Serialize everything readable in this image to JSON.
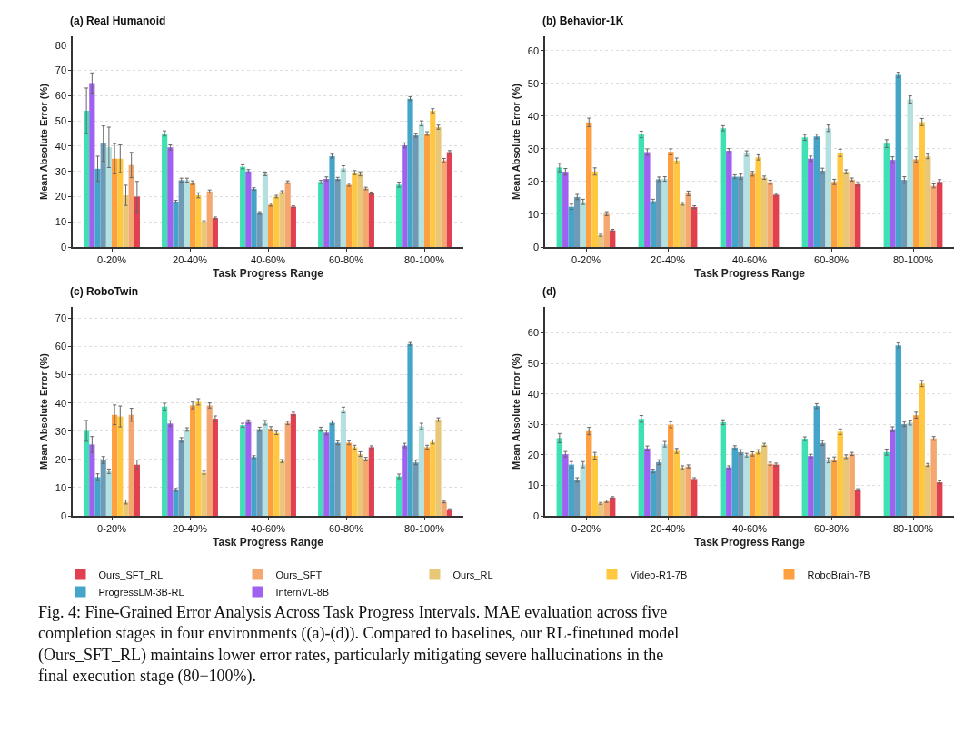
{
  "chart_data": [
    {
      "type": "bar",
      "title": "(a) Real Humanoid",
      "xlabel": "Task Progress Range",
      "ylabel": "Mean Absolute Error (%)",
      "categories": [
        "0-20%",
        "20-40%",
        "40-60%",
        "60-80%",
        "80-100%"
      ],
      "ylim": [
        0,
        83.5
      ],
      "yticks": [
        0,
        10,
        20,
        30,
        40,
        50,
        60,
        70,
        80
      ],
      "grid": "y",
      "legend": "bottom",
      "series": [
        {
          "color": "#40e0b5",
          "values": [
            54,
            45,
            31.8,
            25.8,
            24.7
          ],
          "errors": [
            9,
            1,
            0.8,
            0.6,
            1
          ]
        },
        {
          "name": "InternVL-8B",
          "color": "#a060f0",
          "values": [
            65,
            39.5,
            30,
            27,
            40.3
          ],
          "errors": [
            4,
            1,
            0.7,
            0.8,
            1
          ]
        },
        {
          "name": "ProgressLM-3B-RL",
          "color": "#45a5c8",
          "values": [
            31,
            18,
            23,
            36,
            58.8
          ],
          "errors": [
            5,
            0.5,
            0.5,
            0.8,
            0.8
          ]
        },
        {
          "color": "#6e9ab5",
          "values": [
            41,
            26.5,
            13.5,
            27,
            44.3
          ],
          "errors": [
            7,
            0.8,
            0.5,
            0.6,
            0.8
          ]
        },
        {
          "color": "#b5e0e0",
          "values": [
            39.5,
            26.5,
            29,
            31.2,
            49
          ],
          "errors": [
            8,
            0.8,
            0.7,
            1,
            1
          ]
        },
        {
          "name": "RoboBrain-7B",
          "color": "#ffa040",
          "values": [
            35,
            25.5,
            16.8,
            24.7,
            45
          ],
          "errors": [
            6,
            0.7,
            0.6,
            0.6,
            0.7
          ]
        },
        {
          "name": "Video-R1-7B",
          "color": "#ffc840",
          "values": [
            35,
            20.5,
            20,
            29.5,
            54
          ],
          "errors": [
            5.5,
            1,
            0.5,
            0.8,
            0.8
          ]
        },
        {
          "name": "Ours_RL",
          "color": "#e8c878",
          "values": [
            20.5,
            10,
            21.8,
            29,
            47.5
          ],
          "errors": [
            4,
            0.4,
            0.5,
            0.8,
            0.8
          ]
        },
        {
          "name": "Ours_SFT",
          "color": "#f4a870",
          "values": [
            32.5,
            22,
            25.7,
            23.2,
            34.3
          ],
          "errors": [
            5,
            0.6,
            0.5,
            0.5,
            0.8
          ]
        },
        {
          "name": "Ours_SFT_RL",
          "color": "#e04050",
          "values": [
            20,
            11.5,
            16,
            21.3,
            37.6
          ],
          "errors": [
            6,
            0.4,
            0.3,
            0.5,
            0.6
          ]
        }
      ]
    },
    {
      "type": "bar",
      "title": "(b) Behavior-1K",
      "xlabel": "Task Progress Range",
      "ylabel": "Mean Absolute Error (%)",
      "categories": [
        "0-20%",
        "20-40%",
        "40-60%",
        "60-80%",
        "80-100%"
      ],
      "ylim": [
        0,
        64.4
      ],
      "yticks": [
        0,
        10,
        20,
        30,
        40,
        50,
        60
      ],
      "grid": "y",
      "series": [
        {
          "color": "#40e0b5",
          "values": [
            24.3,
            34.4,
            36.3,
            33.5,
            31.6
          ],
          "errors": [
            1.3,
            1,
            0.8,
            0.9,
            1.2
          ]
        },
        {
          "color": "#a060f0",
          "values": [
            23,
            29,
            29.4,
            27,
            26.6
          ],
          "errors": [
            1,
            1,
            0.7,
            0.8,
            1
          ]
        },
        {
          "color": "#45a5c8",
          "values": [
            12.3,
            14,
            21.5,
            33.8,
            52.6
          ],
          "errors": [
            0.8,
            0.6,
            0.6,
            0.7,
            0.8
          ]
        },
        {
          "color": "#6e9ab5",
          "values": [
            15.3,
            20.7,
            21.5,
            23.3,
            20.5
          ],
          "errors": [
            0.8,
            0.7,
            0.8,
            0.8,
            1
          ]
        },
        {
          "color": "#b5e0e0",
          "values": [
            13.8,
            20.8,
            28.6,
            36.3,
            45.1
          ],
          "errors": [
            0.8,
            0.7,
            0.8,
            1,
            1.1
          ]
        },
        {
          "color": "#ffa040",
          "values": [
            38.1,
            29.1,
            22.4,
            19.9,
            26.8
          ],
          "errors": [
            1.3,
            0.9,
            0.7,
            0.8,
            0.8
          ]
        },
        {
          "color": "#ffc840",
          "values": [
            23.1,
            26.4,
            27.4,
            28.8,
            38.2
          ],
          "errors": [
            1.1,
            0.8,
            0.8,
            1.1,
            1.1
          ]
        },
        {
          "color": "#e8c878",
          "values": [
            3.6,
            13.2,
            21.2,
            23,
            27.7
          ],
          "errors": [
            0.3,
            0.4,
            0.5,
            0.6,
            0.7
          ]
        },
        {
          "color": "#f4a870",
          "values": [
            10.2,
            16.4,
            19.8,
            20.6,
            18.7
          ],
          "errors": [
            0.6,
            0.7,
            0.6,
            0.5,
            0.6
          ]
        },
        {
          "color": "#e04050",
          "values": [
            5.1,
            12.2,
            16,
            19.2,
            19.9
          ],
          "errors": [
            0.3,
            0.4,
            0.4,
            0.5,
            0.7
          ]
        }
      ]
    },
    {
      "type": "bar",
      "title": "(c) RoboTwin",
      "xlabel": "Task Progress Range",
      "ylabel": "Mean Absolute Error (%)",
      "categories": [
        "0-20%",
        "20-40%",
        "40-60%",
        "60-80%",
        "80-100%"
      ],
      "ylim": [
        0,
        74
      ],
      "yticks": [
        0,
        10,
        20,
        30,
        40,
        50,
        60,
        70
      ],
      "grid": "y",
      "series": [
        {
          "color": "#40e0b5",
          "values": [
            30.1,
            38.7,
            32.1,
            30.7,
            14
          ],
          "errors": [
            3.7,
            1.2,
            0.7,
            0.7,
            0.8
          ]
        },
        {
          "color": "#a060f0",
          "values": [
            25.3,
            32.7,
            33.3,
            29.5,
            24.9
          ],
          "errors": [
            2.8,
            1,
            0.7,
            0.8,
            0.8
          ]
        },
        {
          "color": "#45a5c8",
          "values": [
            13.7,
            9.2,
            20.8,
            33,
            60.9
          ],
          "errors": [
            1.2,
            0.5,
            0.5,
            0.7,
            0.5
          ]
        },
        {
          "color": "#6e9ab5",
          "values": [
            19.8,
            26.9,
            30.7,
            25.9,
            18.9
          ],
          "errors": [
            1.2,
            0.8,
            0.7,
            0.7,
            0.8
          ]
        },
        {
          "color": "#b5e0e0",
          "values": [
            15.8,
            30.6,
            33,
            37.5,
            31.7
          ],
          "errors": [
            0.8,
            0.6,
            0.8,
            1,
            1.1
          ]
        },
        {
          "color": "#ffa040",
          "values": [
            35.8,
            39.1,
            30.9,
            25.9,
            24.3
          ],
          "errors": [
            3.5,
            1.2,
            0.7,
            0.7,
            0.7
          ]
        },
        {
          "color": "#ffc840",
          "values": [
            35.2,
            40.4,
            29.4,
            24.3,
            26.2
          ],
          "errors": [
            3.7,
            1.1,
            0.6,
            0.7,
            0.7
          ]
        },
        {
          "color": "#e8c878",
          "values": [
            4.9,
            15.3,
            19.4,
            21.9,
            34.1
          ],
          "errors": [
            0.7,
            0.5,
            0.5,
            0.8,
            0.6
          ]
        },
        {
          "color": "#f4a870",
          "values": [
            35.8,
            39.1,
            32.9,
            20.1,
            4.9
          ],
          "errors": [
            2.3,
            0.9,
            0.6,
            0.6,
            0.3
          ]
        },
        {
          "color": "#e04050",
          "values": [
            18.1,
            34.4,
            36.1,
            24.3,
            2.3
          ],
          "errors": [
            1.7,
            1,
            0.6,
            0.5,
            0.2
          ]
        }
      ]
    },
    {
      "type": "bar",
      "title": "(d)",
      "xlabel": "Task Progress Range",
      "ylabel": "Mean Absolute Error (%)",
      "categories": [
        "0-20%",
        "20-40%",
        "40-60%",
        "60-80%",
        "80-100%"
      ],
      "ylim": [
        0,
        68.5
      ],
      "yticks": [
        0,
        10,
        20,
        30,
        40,
        50,
        60
      ],
      "grid": "y",
      "annotations": [
        "Fig. 4: Fine-Grained Error Analysis Across Task Progress Intervals. MAE evaluation across five completion stages in four environments ((a)-(d)). Compared to baselines, our RL-finetuned model (Ours_SFT_RL) maintains lower error rates, particularly mitigating severe hallucinations in the final execution stage (80−100%)."
      ],
      "series": [
        {
          "color": "#40e0b5",
          "values": [
            25.5,
            31.8,
            30.7,
            25.3,
            20.9
          ],
          "errors": [
            1.5,
            1.1,
            0.8,
            0.6,
            1
          ]
        },
        {
          "color": "#a060f0",
          "values": [
            20.2,
            22.1,
            15.9,
            19.6,
            28.4
          ],
          "errors": [
            0.9,
            0.8,
            0.5,
            0.6,
            0.8
          ]
        },
        {
          "color": "#45a5c8",
          "values": [
            16.8,
            14.7,
            22.4,
            36,
            55.9
          ],
          "errors": [
            1,
            0.6,
            0.6,
            0.8,
            0.8
          ]
        },
        {
          "color": "#6e9ab5",
          "values": [
            11.8,
            17.6,
            20.9,
            23.9,
            30.1
          ],
          "errors": [
            0.7,
            0.8,
            0.8,
            0.8,
            0.8
          ]
        },
        {
          "color": "#b5e0e0",
          "values": [
            16.8,
            23.5,
            19.9,
            18.2,
            30.6
          ],
          "errors": [
            1,
            0.9,
            0.6,
            0.8,
            0.8
          ]
        },
        {
          "color": "#ffa040",
          "values": [
            27.8,
            29.9,
            20.3,
            18.5,
            33
          ],
          "errors": [
            1.2,
            1,
            0.7,
            0.8,
            1
          ]
        },
        {
          "color": "#ffc840",
          "values": [
            19.7,
            21.3,
            21,
            27.6,
            43.4
          ],
          "errors": [
            1.1,
            0.8,
            0.7,
            0.9,
            1
          ]
        },
        {
          "color": "#e8c878",
          "values": [
            4.1,
            15.8,
            23.3,
            19.4,
            16.7
          ],
          "errors": [
            0.3,
            0.6,
            0.5,
            0.6,
            0.5
          ]
        },
        {
          "color": "#f4a870",
          "values": [
            4.8,
            16.2,
            17.1,
            20.3,
            25.4
          ],
          "errors": [
            0.4,
            0.5,
            0.5,
            0.5,
            0.6
          ]
        },
        {
          "color": "#e04050",
          "values": [
            6,
            12.1,
            16.8,
            8.6,
            11
          ],
          "errors": [
            0.3,
            0.4,
            0.5,
            0.3,
            0.5
          ]
        }
      ]
    }
  ]
}
